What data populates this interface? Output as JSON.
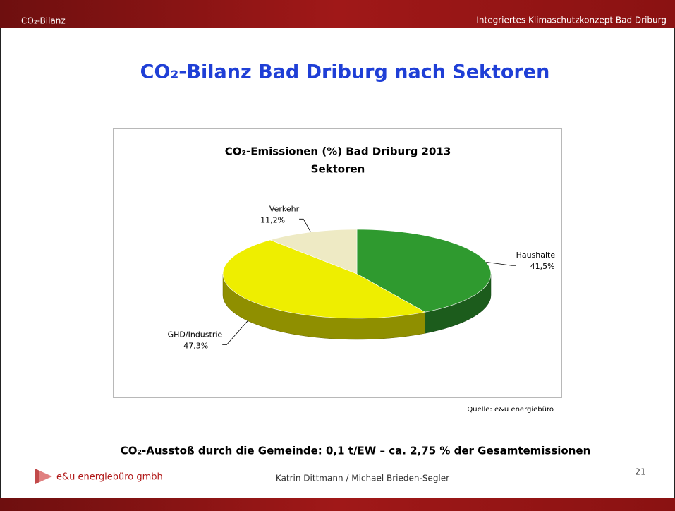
{
  "header": {
    "left": "CO₂-Bilanz",
    "right": "Integriertes Klimaschutzkonzept Bad Driburg"
  },
  "title": "CO₂-Bilanz Bad Driburg nach Sektoren",
  "chart_data": {
    "type": "pie3d",
    "title": "CO₂-Emissionen (%) Bad Driburg 2013",
    "subtitle": "Sektoren",
    "categories": [
      "Haushalte",
      "GHD/Industrie",
      "Verkehr"
    ],
    "values": [
      41.5,
      47.3,
      11.2
    ],
    "value_labels": [
      "41,5%",
      "47,3%",
      "11,2%"
    ],
    "colors": [
      "#2f9a2f",
      "#eeee00",
      "#eeeac4"
    ]
  },
  "source": "Quelle: e&u energiebüro",
  "statement": "CO₂-Ausstoß  durch die Gemeinde: 0,1 t/EW – ca. 2,75 % der Gesamtemissionen",
  "footer": {
    "company": "e&u energiebüro gmbh",
    "authors": "Katrin Dittmann / Michael Brieden-Segler",
    "page": "21"
  }
}
